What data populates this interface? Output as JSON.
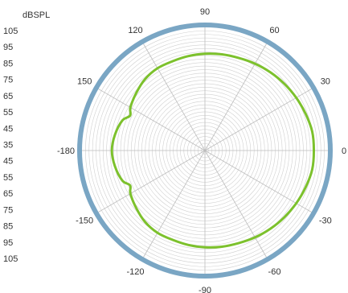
{
  "chart_data": {
    "type": "polar-line",
    "unit_label": "dBSPL",
    "radial_scale_labels": [
      "105",
      "95",
      "85",
      "75",
      "65",
      "55",
      "45",
      "35",
      "45",
      "55",
      "65",
      "75",
      "85",
      "95",
      "105"
    ],
    "angle_ticks": [
      {
        "deg": 0,
        "label": "0"
      },
      {
        "deg": 30,
        "label": "30"
      },
      {
        "deg": 60,
        "label": "60"
      },
      {
        "deg": 90,
        "label": "90"
      },
      {
        "deg": 120,
        "label": "120"
      },
      {
        "deg": 150,
        "label": "150"
      },
      {
        "deg": 180,
        "label": "-180"
      },
      {
        "deg": 210,
        "label": "-150"
      },
      {
        "deg": 240,
        "label": "-120"
      },
      {
        "deg": 270,
        "label": "-90"
      },
      {
        "deg": 300,
        "label": "-60"
      },
      {
        "deg": 330,
        "label": "-30"
      }
    ],
    "r_range": [
      35,
      105
    ],
    "grid": true,
    "series": [
      {
        "angles_deg": [
          0,
          10,
          20,
          30,
          40,
          50,
          60,
          70,
          80,
          90,
          100,
          110,
          120,
          130,
          140,
          150,
          155,
          160,
          170,
          180,
          190,
          200,
          205,
          210,
          220,
          230,
          240,
          250,
          260,
          270,
          280,
          290,
          300,
          310,
          320,
          330,
          340,
          350
        ],
        "values_dB": [
          97,
          97,
          96,
          95,
          94,
          93,
          92,
          91,
          90.5,
          90,
          89.5,
          89,
          89,
          88,
          86,
          84,
          82,
          85,
          87,
          88,
          87,
          85,
          82,
          84,
          86,
          88,
          89,
          89,
          89.5,
          90,
          90.5,
          91,
          92,
          93,
          94,
          95,
          96,
          97
        ]
      }
    ],
    "colors": {
      "series": "#7cc12c",
      "ring": "#7aa6c4",
      "grid": "#d0d0d0"
    }
  }
}
